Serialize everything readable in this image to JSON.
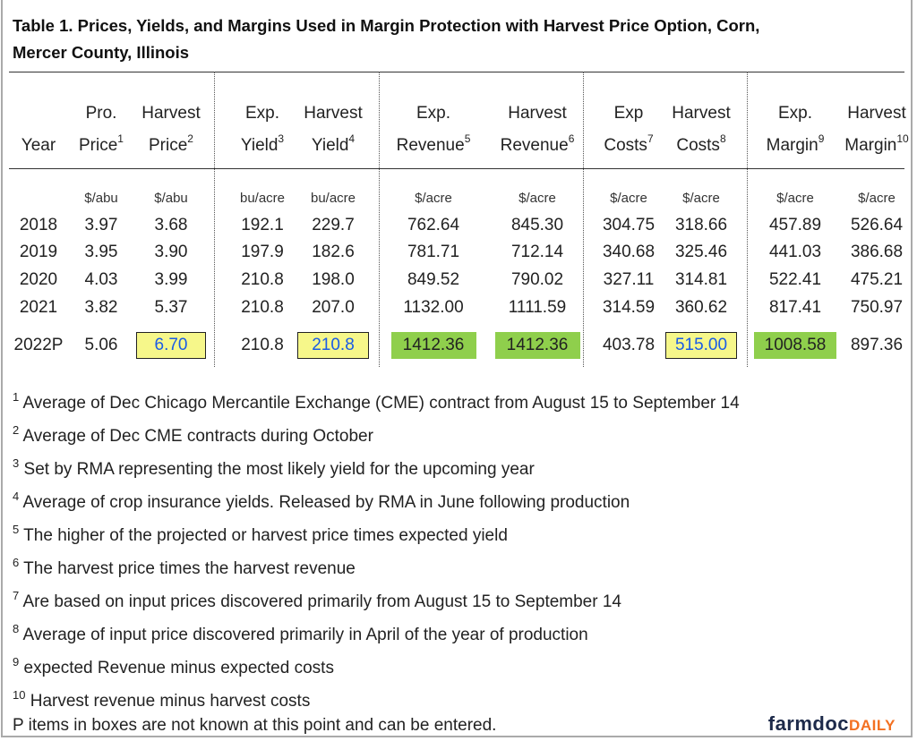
{
  "title_line1": "Table 1. Prices, Yields, and Margins Used in Margin Protection with Harvest Price Option, Corn,",
  "title_line2": "Mercer  County, Illinois",
  "columns": [
    {
      "top": "",
      "bottom": "Year",
      "sup": "",
      "unit": ""
    },
    {
      "top": "Pro.",
      "bottom": "Price",
      "sup": "1",
      "unit": "$/abu"
    },
    {
      "top": "Harvest",
      "bottom": "Price",
      "sup": "2",
      "unit": "$/abu"
    },
    {
      "top": "Exp.",
      "bottom": "Yield",
      "sup": "3",
      "unit": "bu/acre"
    },
    {
      "top": "Harvest",
      "bottom": "Yield",
      "sup": "4",
      "unit": "bu/acre"
    },
    {
      "top": "Exp.",
      "bottom": "Revenue",
      "sup": "5",
      "unit": "$/acre"
    },
    {
      "top": "Harvest",
      "bottom": "Revenue",
      "sup": "6",
      "unit": "$/acre"
    },
    {
      "top": "Exp",
      "bottom": "Costs",
      "sup": "7",
      "unit": "$/acre"
    },
    {
      "top": "Harvest",
      "bottom": "Costs",
      "sup": "8",
      "unit": "$/acre"
    },
    {
      "top": "Exp.",
      "bottom": "Margin",
      "sup": "9",
      "unit": "$/acre"
    },
    {
      "top": "Harvest",
      "bottom": "Margin",
      "sup": "10",
      "unit": "$/acre"
    }
  ],
  "rows": [
    [
      "2018",
      "3.97",
      "3.68",
      "192.1",
      "229.7",
      "762.64",
      "845.30",
      "304.75",
      "318.66",
      "457.89",
      "526.64"
    ],
    [
      "2019",
      "3.95",
      "3.90",
      "197.9",
      "182.6",
      "781.71",
      "712.14",
      "340.68",
      "325.46",
      "441.03",
      "386.68"
    ],
    [
      "2020",
      "4.03",
      "3.99",
      "210.8",
      "198.0",
      "849.52",
      "790.02",
      "327.11",
      "314.81",
      "522.41",
      "475.21"
    ],
    [
      "2021",
      "3.82",
      "5.37",
      "210.8",
      "207.0",
      "1132.00",
      "1111.59",
      "314.59",
      "360.62",
      "817.41",
      "750.97"
    ],
    [
      "2022P",
      "5.06",
      "6.70",
      "210.8",
      "210.8",
      "1412.36",
      "1412.36",
      "403.78",
      "515.00",
      "1008.58",
      "897.36"
    ]
  ],
  "highlights": {
    "input_boxes_color": "#f6f78a",
    "input_text_color": "#1a5ce6",
    "computed_boxes_color": "#8fcf4c",
    "input_columns": [
      2,
      4,
      8
    ],
    "computed_columns": [
      5,
      6,
      9
    ]
  },
  "footnotes": [
    {
      "n": "1",
      "text": "Average of Dec Chicago Mercantile Exchange (CME) contract from August 15 to September 14"
    },
    {
      "n": "2",
      "text": "Average of Dec CME contracts during October"
    },
    {
      "n": "3",
      "text": "Set by RMA representing the most likely yield for the upcoming year"
    },
    {
      "n": "4",
      "text": "Average of crop insurance yields. Released by RMA in June following production"
    },
    {
      "n": "5",
      "text": "The higher of the projected or harvest price times expected yield"
    },
    {
      "n": "6",
      "text": "The harvest price times the harvest revenue"
    },
    {
      "n": "7",
      "text": "Are based on input prices discovered primarily from August 15 to September 14"
    },
    {
      "n": "8",
      "text": "Average of input price discovered primarily in April of the year of production"
    },
    {
      "n": "9",
      "text": "expected Revenue minus expected costs"
    },
    {
      "n": "10",
      "text": "Harvest revenue minus harvest costs"
    }
  ],
  "note": "P items in boxes are not known at this point and can be entered.",
  "logo": {
    "part1": "farmdoc",
    "part2": "DAILY"
  }
}
